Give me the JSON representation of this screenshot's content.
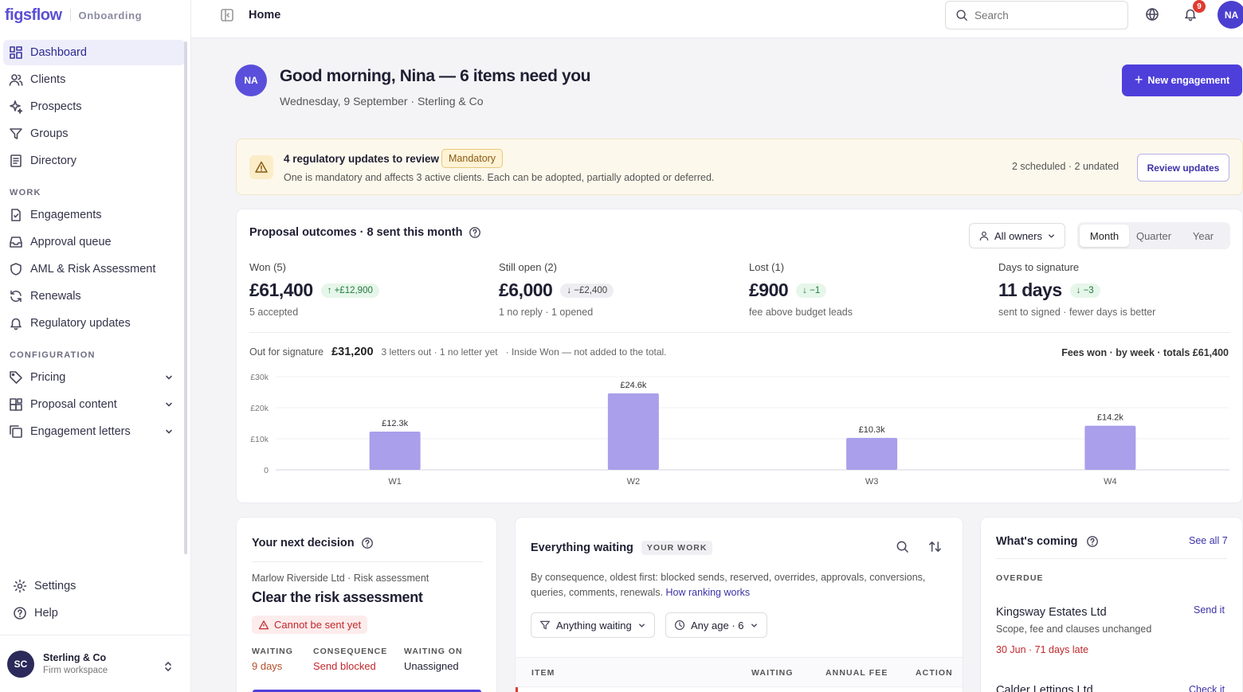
{
  "brand": {
    "logo": "figsflow",
    "section": "Onboarding"
  },
  "sidebar": {
    "items": [
      {
        "label": "Dashboard",
        "icon": "dashboard-icon"
      },
      {
        "label": "Clients",
        "icon": "users-icon"
      },
      {
        "label": "Prospects",
        "icon": "sparkle-icon"
      },
      {
        "label": "Groups",
        "icon": "filter-icon"
      },
      {
        "label": "Directory",
        "icon": "book-icon"
      }
    ],
    "work_label": "WORK",
    "work_items": [
      {
        "label": "Engagements",
        "icon": "file-check-icon"
      },
      {
        "label": "Approval queue",
        "icon": "inbox-icon"
      },
      {
        "label": "AML & Risk Assessment",
        "icon": "shield-icon"
      },
      {
        "label": "Renewals",
        "icon": "refresh-icon"
      },
      {
        "label": "Regulatory updates",
        "icon": "bell-icon"
      }
    ],
    "config_label": "CONFIGURATION",
    "config_items": [
      {
        "label": "Pricing",
        "icon": "tag-icon"
      },
      {
        "label": "Proposal content",
        "icon": "blocks-icon"
      },
      {
        "label": "Engagement letters",
        "icon": "copy-icon"
      }
    ],
    "settings": "Settings",
    "help": "Help",
    "workspace": {
      "initials": "SC",
      "name": "Sterling & Co",
      "sub": "Firm workspace"
    }
  },
  "topbar": {
    "title": "Home",
    "search_placeholder": "Search",
    "notifications": "9",
    "user_initials": "NA"
  },
  "greeting": {
    "initials": "NA",
    "title": "Good morning, Nina — 6 items need you",
    "subtitle": "Wednesday, 9 September · Sterling & Co",
    "new_button": "New engagement"
  },
  "banner": {
    "title": "4 regulatory updates to review",
    "badge": "Mandatory",
    "desc": "One is mandatory and affects 3 active clients. Each can be adopted, partially adopted or deferred.",
    "meta": "2 scheduled · 2 undated",
    "button": "Review updates"
  },
  "outcomes": {
    "title": "Proposal outcomes · 8 sent this month",
    "owners": "All owners",
    "periods": [
      "Month",
      "Quarter",
      "Year"
    ],
    "kpis": [
      {
        "label": "Won (5)",
        "value": "£61,400",
        "delta": "↑ +£12,900",
        "sub": "5 accepted"
      },
      {
        "label": "Still open (2)",
        "value": "£6,000",
        "delta": "↓ −£2,400",
        "sub": "1 no reply · 1 opened"
      },
      {
        "label": "Lost (1)",
        "value": "£900",
        "delta": "↓ −1",
        "sub": "fee above budget leads"
      },
      {
        "label": "Days to signature",
        "value": "11 days",
        "delta": "↓ −3",
        "sub": "sent to signed · fewer days is better"
      }
    ],
    "signature": {
      "label": "Out for signature",
      "value": "£31,200",
      "letters": "3 letters out · 1 no letter yet",
      "note": "· Inside Won — not added to the total."
    },
    "chart_title": "Fees won · by week · totals £61,400"
  },
  "chart_data": {
    "type": "bar",
    "title": "Fees won · by week · totals £61,400",
    "categories": [
      "W1",
      "W2",
      "W3",
      "W4"
    ],
    "values": [
      12300,
      24600,
      10300,
      14200
    ],
    "data_labels": [
      "£12.3k",
      "£24.6k",
      "£10.3k",
      "£14.2k"
    ],
    "yticks": [
      0,
      10000,
      20000,
      30000
    ],
    "ytick_labels": [
      "0",
      "£10k",
      "£20k",
      "£30k"
    ],
    "ylim": [
      0,
      30000
    ],
    "grid": true,
    "bar_color": "#a99fea"
  },
  "decision": {
    "title": "Your next decision",
    "client": "Marlow Riverside Ltd · Risk assessment",
    "headline": "Clear the risk assessment",
    "status": "Cannot be sent yet",
    "waiting_label": "WAITING",
    "waiting": "9 days",
    "consequence_label": "CONSEQUENCE",
    "consequence": "Send blocked",
    "waiting_on_label": "WAITING ON",
    "waiting_on": "Unassigned"
  },
  "waiting": {
    "title": "Everything waiting",
    "badge": "YOUR WORK",
    "desc": "By consequence, oldest first: blocked sends, reserved, overrides, approvals, conversions, queries, comments, renewals.",
    "link": "How ranking works",
    "filter1": "Anything waiting",
    "filter2": "Any age · 6",
    "columns": [
      "ITEM",
      "WAITING",
      "ANNUAL FEE",
      "ACTION"
    ]
  },
  "coming": {
    "title": "What's coming",
    "see_all": "See all 7",
    "section": "OVERDUE",
    "item_name": "Kingsway Estates Ltd",
    "item_action": "Send it",
    "item_desc": "Scope, fee and clauses unchanged",
    "item_late": "30 Jun · 71 days late",
    "item2_name": "Calder Lettings Ltd",
    "item2_action": "Check it"
  }
}
